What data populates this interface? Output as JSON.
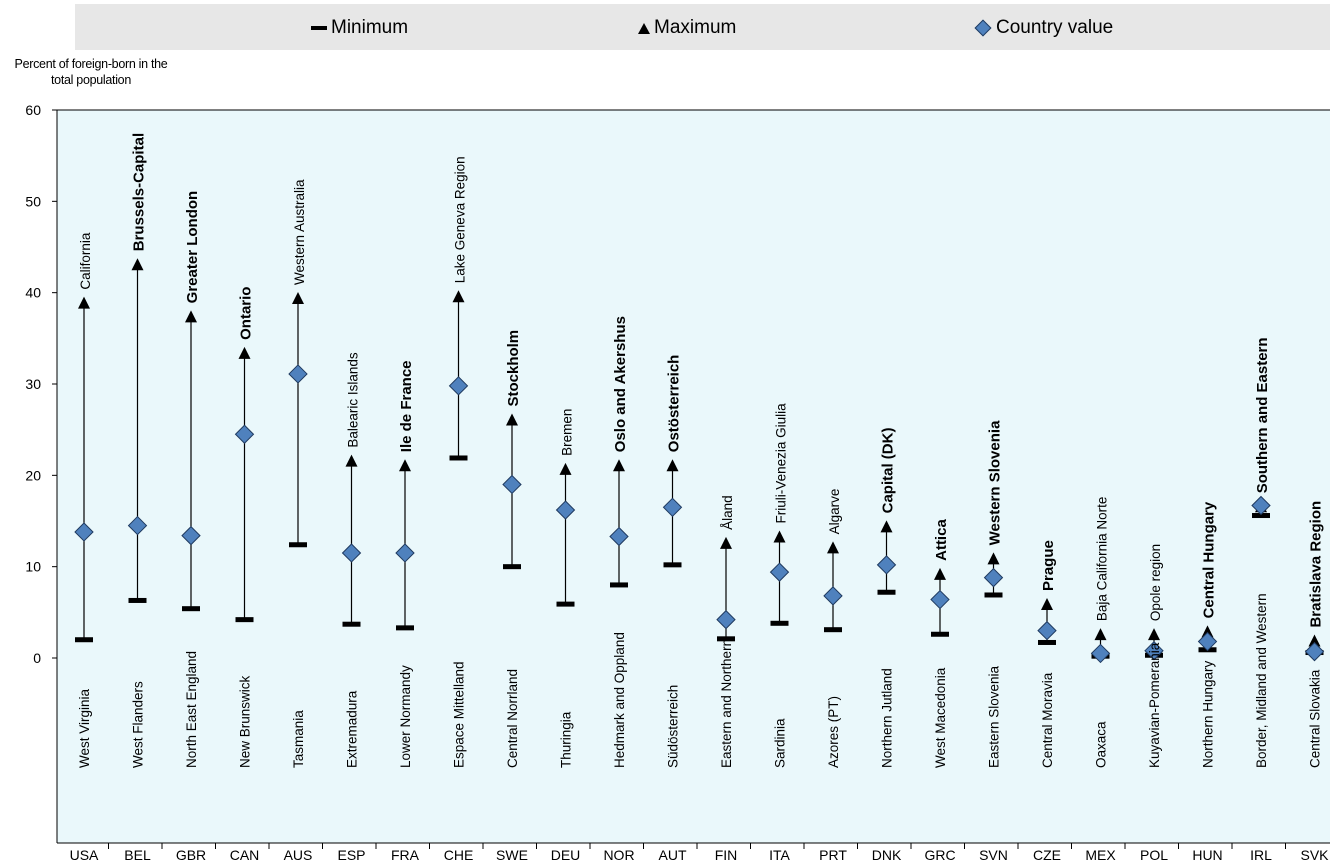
{
  "legend": {
    "min_label": "Minimum",
    "max_label": "Maximum",
    "cv_label": "Country value"
  },
  "colors": {
    "plot_bg": "#eaf8fb",
    "marker_fill": "#4f81bd",
    "marker_stroke": "#1f3a5f",
    "line": "#000000",
    "legend_bg": "#e7e7e7"
  },
  "chart_data": {
    "type": "scatter",
    "ylabel": "Percent of foreign-born in the total population",
    "ylim": [
      0,
      60
    ],
    "yticks": [
      0,
      10,
      20,
      30,
      40,
      50,
      60
    ],
    "categories": [
      "USA",
      "BEL",
      "GBR",
      "CAN",
      "AUS",
      "ESP",
      "FRA",
      "CHE",
      "SWE",
      "DEU",
      "NOR",
      "AUT",
      "FIN",
      "ITA",
      "PRT",
      "DNK",
      "GRC",
      "SVN",
      "CZE",
      "MEX",
      "POL",
      "HUN",
      "IRL",
      "SVK"
    ],
    "series": [
      {
        "name": "Minimum",
        "values": [
          2.0,
          6.3,
          5.4,
          4.2,
          12.4,
          3.7,
          3.3,
          21.9,
          10.0,
          5.9,
          8.0,
          10.2,
          2.1,
          3.8,
          3.1,
          7.2,
          2.6,
          6.9,
          1.7,
          0.2,
          0.3,
          0.9,
          15.6,
          0.6
        ]
      },
      {
        "name": "Maximum",
        "values": [
          38.8,
          43.0,
          37.3,
          33.3,
          39.3,
          21.5,
          21.0,
          39.5,
          26.0,
          20.6,
          21.0,
          21.0,
          12.5,
          13.2,
          12.0,
          14.3,
          9.1,
          10.8,
          5.8,
          2.5,
          2.5,
          2.8,
          16.5,
          1.8
        ]
      },
      {
        "name": "Country value",
        "values": [
          13.8,
          14.5,
          13.4,
          24.5,
          31.1,
          11.5,
          11.5,
          29.8,
          19.0,
          16.2,
          13.3,
          16.5,
          4.2,
          9.4,
          6.8,
          10.2,
          6.4,
          8.8,
          3.0,
          0.5,
          0.8,
          1.8,
          16.7,
          0.7
        ]
      }
    ],
    "max_region": [
      "California",
      "Brussels-Capital",
      "Greater London",
      "Ontario",
      "Western Australia",
      "Balearic Islands",
      "Ile de France",
      "Lake Geneva Region",
      "Stockholm",
      "Bremen",
      "Oslo and Akershus",
      "Ostösterreich",
      "Åland",
      "Friuli-Venezia Giulia",
      "Algarve",
      "Capital (DK)",
      "Attica",
      "Western Slovenia",
      "Prague",
      "Baja California Norte",
      "Opole region",
      "Central Hungary",
      "Southern and Eastern",
      "Bratislava Region"
    ],
    "max_region_bold": [
      false,
      true,
      true,
      true,
      false,
      false,
      true,
      false,
      true,
      false,
      true,
      true,
      false,
      false,
      false,
      true,
      true,
      true,
      true,
      false,
      false,
      true,
      true,
      true
    ],
    "min_region": [
      "West Virginia",
      "West Flanders",
      "North East England",
      "New Brunswick",
      "Tasmania",
      "Extremadura",
      "Lower Normandy",
      "Espace Mittelland",
      "Central Norrland",
      "Thuringia",
      "Hedmark and Oppland",
      "Südösterreich",
      "Eastern and Northern",
      "Sardinia",
      "Azores (PT)",
      "Northern Jutland",
      "West Macedonia",
      "Eastern Slovenia",
      "Central Moravia",
      "Oaxaca",
      "Kuyavian-Pomerania",
      "Northern Hungary",
      "Border, Midland and Western",
      "Central Slovakia"
    ],
    "grid": false,
    "legend_position": "top"
  }
}
